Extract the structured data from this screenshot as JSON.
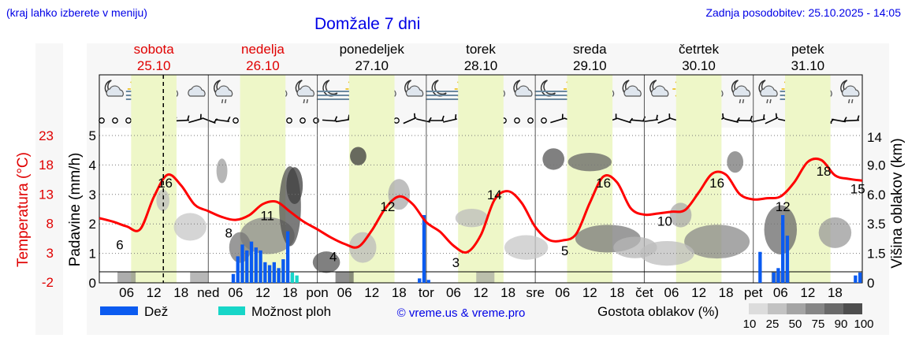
{
  "header": {
    "region_hint": "(kraj lahko izberete v meniju)",
    "title": "Domžale 7 dni",
    "updated": "Zadnja posodobitev: 25.10.2025 - 14:05"
  },
  "days": [
    {
      "name": "sobota",
      "date": "25.10",
      "color": "#e00000"
    },
    {
      "name": "nedelja",
      "date": "26.10",
      "color": "#e00000"
    },
    {
      "name": "ponedeljek",
      "date": "27.10",
      "color": "#000000"
    },
    {
      "name": "torek",
      "date": "28.10",
      "color": "#000000"
    },
    {
      "name": "sreda",
      "date": "29.10",
      "color": "#000000"
    },
    {
      "name": "četrtek",
      "date": "30.10",
      "color": "#000000"
    },
    {
      "name": "petek",
      "date": "31.10",
      "color": "#000000"
    }
  ],
  "bottom_axis_labels": [
    "06",
    "12",
    "18",
    "ned",
    "06",
    "12",
    "18",
    "pon",
    "06",
    "12",
    "18",
    "tor",
    "06",
    "12",
    "18",
    "sre",
    "06",
    "12",
    "18",
    "čet",
    "06",
    "12",
    "18",
    "pet",
    "06",
    "12",
    "18"
  ],
  "legend": {
    "rain": "Dež",
    "shower": "Možnost ploh",
    "credit": "© vreme.us & vreme.pro",
    "cloud_title": "Gostota oblakov (%)",
    "cloud_ticks": [
      "10",
      "25",
      "50",
      "75",
      "90",
      "100"
    ]
  },
  "colors": {
    "rain": "#0b5bf0",
    "shower": "#17d6c8",
    "temperature": "#ff0000",
    "daylight": "#eef7c8",
    "title": "#0000e6"
  },
  "icon_names": [
    "moon-cloud-icon",
    "sun-fog-icon",
    "sun-cloud-icon",
    "cloud-icon",
    "moon-drizzle-icon",
    "cloud-rain-icon",
    "sun-drizzle-icon",
    "moon-drizzle-icon",
    "moon-fog-icon",
    "sun-fog-icon",
    "sun-cloud-icon",
    "moon-cloud-icon",
    "moon-fog-icon",
    "sun-fog-icon",
    "sun-cloud-icon",
    "moon-cloud-icon",
    "moon-fog-icon",
    "sun-fog-icon",
    "sun-cloud-icon",
    "moon-cloud-icon",
    "moon-cloud-icon",
    "sun-icon",
    "sun-cloud-icon",
    "moon-drizzle-icon",
    "moon-drizzle-icon",
    "sun-fog-icon",
    "sun-cloud-icon",
    "moon-drizzle-icon"
  ],
  "chart_data": {
    "type": "line",
    "x_unit": "hours from 25.10 00:00",
    "x_range": [
      0,
      168
    ],
    "y_left_outer": {
      "label": "Temperatura (°C)",
      "ticks": [
        "23",
        "18",
        "13",
        "8",
        "3",
        "-2"
      ]
    },
    "y_left_inner": {
      "label": "Padavine (mm/h)",
      "range": [
        0,
        5
      ],
      "ticks": [
        "0",
        "1",
        "2",
        "3",
        "4",
        "5"
      ]
    },
    "y_right": {
      "label": "Višina oblakov (km)",
      "ticks": [
        "0",
        "1.5",
        "3.5",
        "6.0",
        "9.0",
        "14"
      ]
    },
    "current_time_hours": 14.1,
    "temperature_series": {
      "x": [
        0,
        3,
        6,
        9,
        12,
        15,
        18,
        21,
        24,
        27,
        30,
        33,
        36,
        39,
        42,
        45,
        48,
        51,
        54,
        57,
        60,
        63,
        66,
        69,
        72,
        75,
        78,
        81,
        84,
        87,
        90,
        93,
        96,
        99,
        102,
        105,
        108,
        111,
        114,
        117,
        120,
        123,
        126,
        129,
        132,
        135,
        138,
        141,
        144,
        147,
        150,
        153,
        156,
        159,
        162,
        165,
        168
      ],
      "y": [
        8.9,
        8.3,
        7.5,
        7.0,
        12.5,
        16.3,
        14.5,
        11.2,
        10.1,
        9.1,
        8.6,
        9.4,
        11.3,
        11.7,
        10.0,
        8.3,
        7.0,
        5.6,
        4.5,
        4.0,
        6.8,
        10.6,
        12.6,
        11.3,
        8.2,
        6.6,
        4.2,
        3.1,
        6.0,
        12.0,
        13.5,
        11.5,
        7.4,
        5.2,
        5.1,
        6.2,
        11.5,
        16.0,
        15.0,
        10.6,
        9.5,
        9.7,
        10.0,
        10.3,
        13.3,
        16.5,
        16.3,
        13.0,
        12.1,
        12.3,
        12.6,
        15.0,
        18.5,
        18.8,
        16.2,
        15.6,
        15.3
      ]
    },
    "temperature_labels": [
      {
        "x": 4.5,
        "value": "6"
      },
      {
        "x": 14.5,
        "value": "16"
      },
      {
        "x": 28.5,
        "value": "8"
      },
      {
        "x": 37,
        "value": "11"
      },
      {
        "x": 51.5,
        "value": "4"
      },
      {
        "x": 63.5,
        "value": "12"
      },
      {
        "x": 78.5,
        "value": "3"
      },
      {
        "x": 87,
        "value": "14"
      },
      {
        "x": 102.5,
        "value": "5"
      },
      {
        "x": 111,
        "value": "16"
      },
      {
        "x": 124.5,
        "value": "10"
      },
      {
        "x": 136,
        "value": "16"
      },
      {
        "x": 150.5,
        "value": "12"
      },
      {
        "x": 159.5,
        "value": "18"
      },
      {
        "x": 167,
        "value": "15"
      }
    ],
    "rain_series": {
      "name": "Dež",
      "x": [
        29.5,
        30.5,
        31.5,
        32.5,
        33.5,
        34.5,
        35.5,
        36.5,
        37.5,
        38.5,
        39.5,
        40.5,
        41.5,
        42.5,
        70.5,
        71.5,
        72.5,
        145.5,
        148.5,
        149.5,
        150.5,
        151.5,
        166.5,
        167.5
      ],
      "y": [
        0.3,
        0.9,
        1.3,
        1.1,
        1.4,
        1.2,
        1.1,
        0.7,
        0.6,
        0.7,
        0.5,
        0.8,
        1.75,
        0.3,
        0.15,
        2.3,
        0.1,
        1.05,
        0.35,
        0.5,
        2.3,
        1.6,
        0.25,
        0.35
      ]
    },
    "shower_series": {
      "name": "Možnost ploh",
      "x": [
        42.5,
        43.5
      ],
      "y": [
        0.35,
        0.25
      ]
    },
    "cloud_cover_levels": [
      "10",
      "25",
      "50",
      "75",
      "90",
      "100"
    ]
  }
}
